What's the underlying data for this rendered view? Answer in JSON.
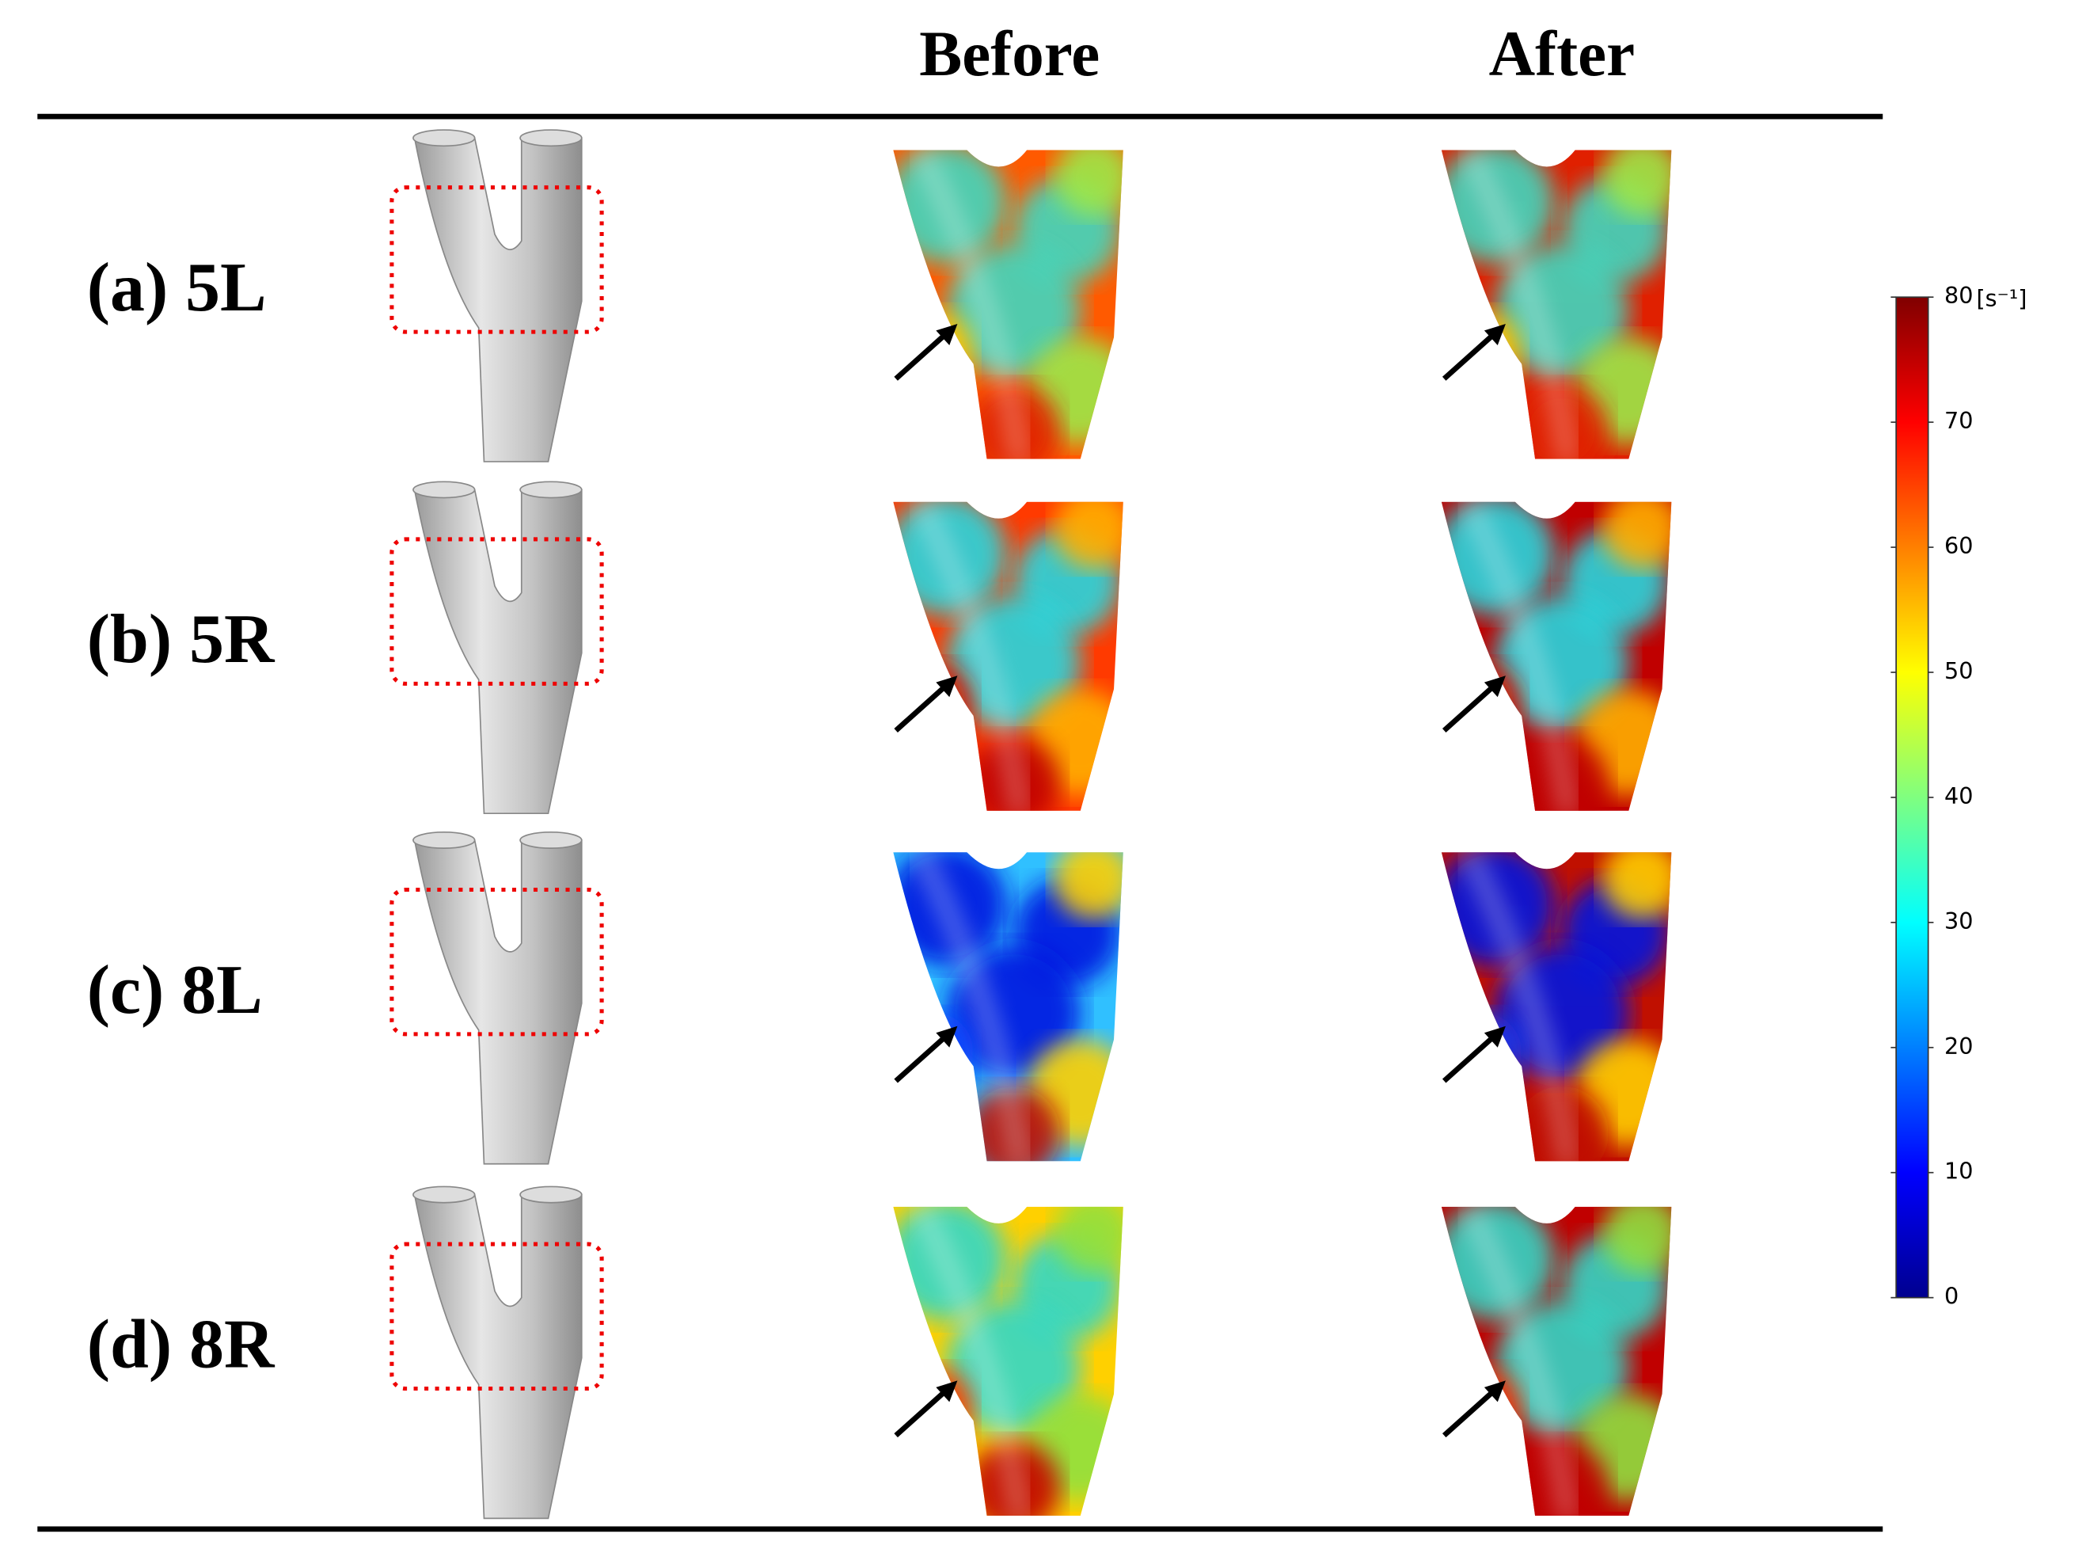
{
  "header": {
    "columns": [
      "Before",
      "After"
    ]
  },
  "rows": [
    {
      "label": "(a) 5L"
    },
    {
      "label": "(b) 5R"
    },
    {
      "label": "(c) 8L"
    },
    {
      "label": "(d) 8R"
    }
  ],
  "colorbar": {
    "lim": [
      0,
      80
    ],
    "ticks": [
      0,
      10,
      20,
      30,
      40,
      50,
      60,
      70,
      80
    ],
    "unit": "[s⁻¹]"
  }
}
